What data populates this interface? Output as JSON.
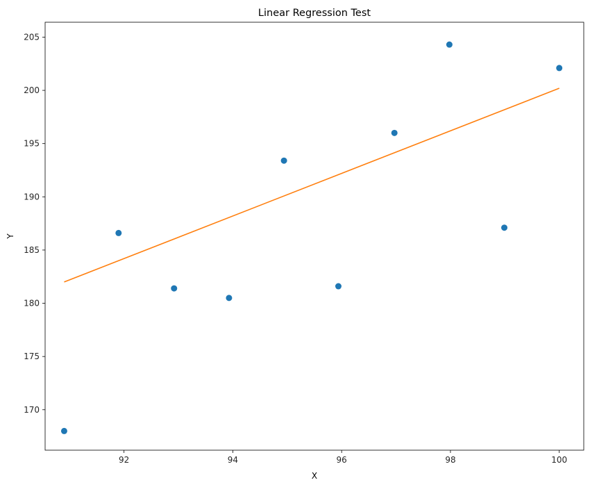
{
  "chart_data": {
    "type": "scatter",
    "title": "Linear Regression Test",
    "xlabel": "X",
    "ylabel": "Y",
    "xlim": [
      90.55,
      100.45
    ],
    "ylim": [
      166.2,
      206.4
    ],
    "xticks": [
      92,
      94,
      96,
      98,
      100
    ],
    "yticks": [
      170,
      175,
      180,
      185,
      190,
      195,
      200,
      205
    ],
    "grid": false,
    "points": {
      "x": [
        90.9,
        91.9,
        92.92,
        93.93,
        94.94,
        95.94,
        96.97,
        97.98,
        98.99,
        100.0
      ],
      "y": [
        168.0,
        186.6,
        181.4,
        180.5,
        193.4,
        181.6,
        196.0,
        204.3,
        187.1,
        202.1
      ],
      "color": "#1f77b4"
    },
    "fit_line": {
      "x": [
        90.9,
        100.0
      ],
      "y": [
        182.0,
        200.2
      ],
      "color": "#ff7f0e"
    }
  }
}
